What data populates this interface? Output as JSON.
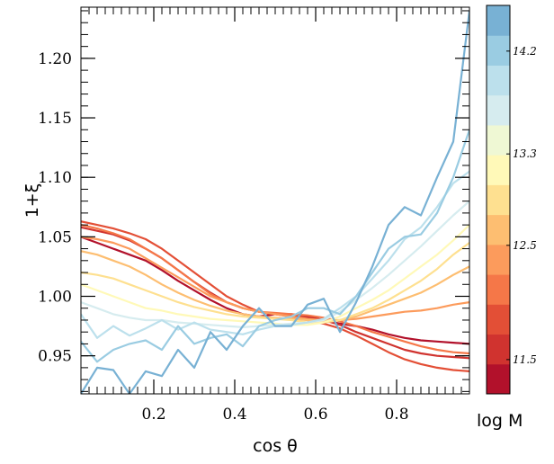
{
  "chart_data": {
    "type": "line",
    "xlabel": "cos θ",
    "ylabel": "1+ξ",
    "xlim": [
      0.02,
      0.98
    ],
    "ylim": [
      0.918,
      1.243
    ],
    "x_ticks": [
      {
        "value": 0.2,
        "label": "0.2"
      },
      {
        "value": 0.4,
        "label": "0.4"
      },
      {
        "value": 0.6,
        "label": "0.6"
      },
      {
        "value": 0.8,
        "label": "0.8"
      }
    ],
    "y_ticks": [
      {
        "value": 0.95,
        "label": "0.95"
      },
      {
        "value": 1.0,
        "label": "1.00"
      },
      {
        "value": 1.05,
        "label": "1.05"
      },
      {
        "value": 1.1,
        "label": "1.10"
      },
      {
        "value": 1.15,
        "label": "1.15"
      },
      {
        "value": 1.2,
        "label": "1.20"
      }
    ],
    "colorbar": {
      "label": "log M",
      "range": [
        11.2,
        14.6
      ],
      "colors": [
        "#b2112b",
        "#d0332f",
        "#e34f36",
        "#f57748",
        "#fc9b5c",
        "#fdbe71",
        "#fee090",
        "#fff9b8",
        "#eff8d4",
        "#d6ecef",
        "#bce0ec",
        "#9acce2",
        "#78b1d4"
      ],
      "ticks": [
        {
          "value": 11.5,
          "label": "11.5"
        },
        {
          "value": 12.5,
          "label": "12.5"
        },
        {
          "value": 13.3,
          "label": "13.3"
        },
        {
          "value": 14.2,
          "label": "14.2"
        }
      ]
    },
    "x": [
      0.02,
      0.06,
      0.1,
      0.14,
      0.18,
      0.22,
      0.26,
      0.3,
      0.34,
      0.38,
      0.42,
      0.46,
      0.5,
      0.54,
      0.58,
      0.62,
      0.66,
      0.7,
      0.74,
      0.78,
      0.82,
      0.86,
      0.9,
      0.94,
      0.98
    ],
    "series": [
      {
        "color": "#b2112b",
        "values": [
          1.05,
          1.045,
          1.04,
          1.035,
          1.03,
          1.022,
          1.013,
          1.005,
          0.997,
          0.99,
          0.985,
          0.983,
          0.985,
          0.985,
          0.983,
          0.98,
          0.977,
          0.975,
          0.972,
          0.968,
          0.965,
          0.963,
          0.962,
          0.961,
          0.96
        ]
      },
      {
        "color": "#d0332f",
        "values": [
          1.058,
          1.055,
          1.052,
          1.047,
          1.04,
          1.032,
          1.022,
          1.012,
          1.003,
          0.995,
          0.99,
          0.987,
          0.985,
          0.984,
          0.982,
          0.98,
          0.976,
          0.97,
          0.965,
          0.96,
          0.955,
          0.952,
          0.95,
          0.949,
          0.948
        ]
      },
      {
        "color": "#e34f36",
        "values": [
          1.063,
          1.06,
          1.057,
          1.053,
          1.048,
          1.04,
          1.03,
          1.02,
          1.01,
          1.0,
          0.993,
          0.987,
          0.985,
          0.983,
          0.98,
          0.977,
          0.973,
          0.967,
          0.96,
          0.953,
          0.947,
          0.943,
          0.94,
          0.938,
          0.937
        ]
      },
      {
        "color": "#f57748",
        "values": [
          1.06,
          1.057,
          1.053,
          1.048,
          1.04,
          1.032,
          1.022,
          1.012,
          1.002,
          0.995,
          0.99,
          0.987,
          0.986,
          0.985,
          0.984,
          0.982,
          0.979,
          0.975,
          0.97,
          0.966,
          0.962,
          0.958,
          0.955,
          0.953,
          0.952
        ]
      },
      {
        "color": "#fc9b5c",
        "values": [
          1.05,
          1.048,
          1.045,
          1.04,
          1.032,
          1.024,
          1.016,
          1.008,
          1.0,
          0.995,
          0.99,
          0.987,
          0.985,
          0.983,
          0.981,
          0.98,
          0.98,
          0.981,
          0.983,
          0.985,
          0.987,
          0.988,
          0.99,
          0.993,
          0.995
        ]
      },
      {
        "color": "#fdbe71",
        "values": [
          1.038,
          1.035,
          1.03,
          1.025,
          1.018,
          1.01,
          1.003,
          0.997,
          0.992,
          0.988,
          0.985,
          0.983,
          0.982,
          0.981,
          0.98,
          0.979,
          0.98,
          0.983,
          0.988,
          0.993,
          0.998,
          1.003,
          1.01,
          1.018,
          1.025
        ]
      },
      {
        "color": "#fee090",
        "values": [
          1.02,
          1.018,
          1.015,
          1.01,
          1.005,
          1.0,
          0.995,
          0.991,
          0.988,
          0.985,
          0.983,
          0.982,
          0.981,
          0.98,
          0.978,
          0.978,
          0.98,
          0.985,
          0.99,
          0.997,
          1.005,
          1.013,
          1.023,
          1.035,
          1.045
        ]
      },
      {
        "color": "#fff9b8",
        "values": [
          1.01,
          1.005,
          1.0,
          0.995,
          0.99,
          0.988,
          0.985,
          0.983,
          0.981,
          0.98,
          0.979,
          0.978,
          0.977,
          0.976,
          0.976,
          0.978,
          0.983,
          0.99,
          0.997,
          1.005,
          1.015,
          1.025,
          1.035,
          1.047,
          1.06
        ]
      },
      {
        "color": "#d6ecef",
        "values": [
          0.995,
          0.99,
          0.985,
          0.982,
          0.98,
          0.98,
          0.978,
          0.977,
          0.976,
          0.975,
          0.974,
          0.975,
          0.976,
          0.977,
          0.978,
          0.98,
          0.987,
          0.997,
          1.007,
          1.018,
          1.03,
          1.042,
          1.055,
          1.068,
          1.08
        ]
      },
      {
        "color": "#bce0ec",
        "values": [
          0.985,
          0.965,
          0.975,
          0.967,
          0.973,
          0.98,
          0.972,
          0.978,
          0.972,
          0.97,
          0.968,
          0.972,
          0.975,
          0.976,
          0.978,
          0.981,
          0.99,
          1.0,
          1.015,
          1.03,
          1.048,
          1.058,
          1.075,
          1.095,
          1.105
        ]
      },
      {
        "color": "#9acce2",
        "values": [
          0.962,
          0.945,
          0.955,
          0.96,
          0.963,
          0.955,
          0.975,
          0.96,
          0.965,
          0.968,
          0.958,
          0.975,
          0.98,
          0.983,
          0.99,
          0.99,
          0.985,
          1.0,
          1.02,
          1.04,
          1.05,
          1.052,
          1.07,
          1.1,
          1.14
        ]
      },
      {
        "color": "#78b1d4",
        "values": [
          0.918,
          0.94,
          0.938,
          0.918,
          0.937,
          0.933,
          0.955,
          0.94,
          0.97,
          0.955,
          0.975,
          0.99,
          0.975,
          0.975,
          0.993,
          0.998,
          0.97,
          0.995,
          1.025,
          1.06,
          1.075,
          1.068,
          1.1,
          1.13,
          1.24
        ]
      }
    ]
  }
}
